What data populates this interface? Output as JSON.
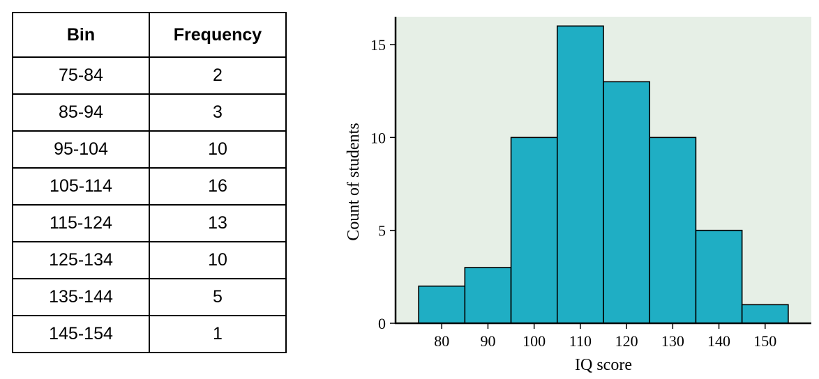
{
  "table": {
    "headers": [
      "Bin",
      "Frequency"
    ],
    "rows": [
      [
        "75-84",
        "2"
      ],
      [
        "85-94",
        "3"
      ],
      [
        "95-104",
        "10"
      ],
      [
        "105-114",
        "16"
      ],
      [
        "115-124",
        "13"
      ],
      [
        "125-134",
        "10"
      ],
      [
        "135-144",
        "5"
      ],
      [
        "145-154",
        "1"
      ]
    ]
  },
  "chart_data": {
    "type": "bar",
    "title": "",
    "xlabel": "IQ score",
    "ylabel": "Count of students",
    "bins": [
      [
        75,
        85
      ],
      [
        85,
        95
      ],
      [
        95,
        105
      ],
      [
        105,
        115
      ],
      [
        115,
        125
      ],
      [
        125,
        135
      ],
      [
        135,
        145
      ],
      [
        145,
        155
      ]
    ],
    "values": [
      2,
      3,
      10,
      16,
      13,
      10,
      5,
      1
    ],
    "xticks": [
      80,
      90,
      100,
      110,
      120,
      130,
      140,
      150
    ],
    "yticks": [
      0,
      5,
      10,
      15
    ],
    "xlim": [
      70,
      160
    ],
    "ylim": [
      0,
      16.5
    ],
    "grid": false,
    "colors": {
      "bar": "#1faec4",
      "plot_background": "#e6efe6",
      "outline": "#000000"
    }
  }
}
